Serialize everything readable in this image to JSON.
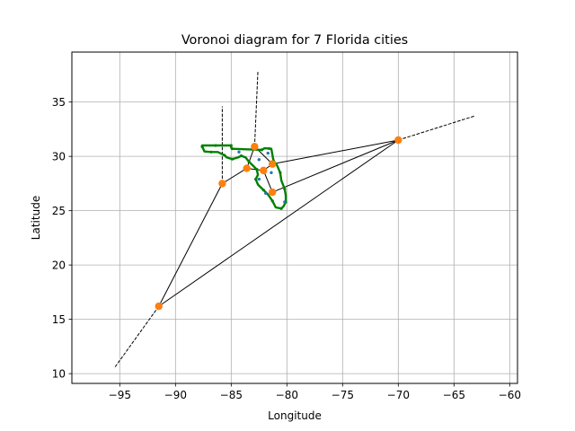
{
  "chart_data": {
    "type": "scatter",
    "title": "Voronoi diagram for 7 Florida cities",
    "xlabel": "Longitude",
    "ylabel": "Latitude",
    "xlim": [
      -99.3,
      -59.3
    ],
    "ylim": [
      9.1,
      39.6
    ],
    "xticks": [
      -95,
      -90,
      -85,
      -80,
      -75,
      -70,
      -65,
      -60
    ],
    "yticks": [
      10,
      15,
      20,
      25,
      30,
      35
    ],
    "xtick_labels": [
      "−95",
      "−90",
      "−85",
      "−80",
      "−75",
      "−70",
      "−65",
      "−60"
    ],
    "ytick_labels": [
      "10",
      "15",
      "20",
      "25",
      "30",
      "35"
    ],
    "grid": true,
    "colors": {
      "cities": "#1f77b4",
      "vertices": "#ff7f0e",
      "outline": "#008000",
      "edges": "#000000"
    },
    "cities": [
      {
        "x": -84.3,
        "y": 30.4
      },
      {
        "x": -82.5,
        "y": 29.7
      },
      {
        "x": -81.4,
        "y": 28.5
      },
      {
        "x": -82.5,
        "y": 27.9
      },
      {
        "x": -80.2,
        "y": 25.8
      },
      {
        "x": -81.7,
        "y": 30.3
      },
      {
        "x": -81.9,
        "y": 26.6
      }
    ],
    "vertices": [
      {
        "x": -82.9,
        "y": 30.9
      },
      {
        "x": -70.0,
        "y": 31.5
      },
      {
        "x": -85.8,
        "y": 27.5
      },
      {
        "x": -83.6,
        "y": 28.9
      },
      {
        "x": -82.1,
        "y": 28.7
      },
      {
        "x": -81.3,
        "y": 29.3
      },
      {
        "x": -81.3,
        "y": 26.7
      },
      {
        "x": -91.5,
        "y": 16.2
      }
    ],
    "ridges": [
      [
        [
          -82.9,
          30.9
        ],
        [
          -81.3,
          29.3
        ]
      ],
      [
        [
          -82.9,
          30.9
        ],
        [
          -83.6,
          28.9
        ]
      ],
      [
        [
          -83.6,
          28.9
        ],
        [
          -85.8,
          27.5
        ]
      ],
      [
        [
          -83.6,
          28.9
        ],
        [
          -82.1,
          28.7
        ]
      ],
      [
        [
          -82.1,
          28.7
        ],
        [
          -81.3,
          29.3
        ]
      ],
      [
        [
          -82.1,
          28.7
        ],
        [
          -81.3,
          26.7
        ]
      ],
      [
        [
          -81.3,
          29.3
        ],
        [
          -70.0,
          31.5
        ]
      ],
      [
        [
          -85.8,
          27.5
        ],
        [
          -91.5,
          16.2
        ]
      ],
      [
        [
          -91.5,
          16.2
        ],
        [
          -70.0,
          31.5
        ]
      ],
      [
        [
          -81.3,
          26.7
        ],
        [
          -70.0,
          31.5
        ]
      ]
    ],
    "open_ridges": [
      [
        [
          -85.8,
          27.5
        ],
        [
          -85.8,
          34.6
        ]
      ],
      [
        [
          -82.9,
          30.9
        ],
        [
          -82.6,
          37.9
        ]
      ],
      [
        [
          -70.0,
          31.5
        ],
        [
          -63.2,
          33.7
        ]
      ],
      [
        [
          -91.5,
          16.2
        ],
        [
          -95.5,
          10.5
        ]
      ]
    ],
    "outline": [
      [
        -87.6,
        30.9
      ],
      [
        -87.6,
        31.0
      ],
      [
        -86.4,
        31.0
      ],
      [
        -85.6,
        31.0
      ],
      [
        -85.0,
        31.0
      ],
      [
        -85.0,
        30.8
      ],
      [
        -84.9,
        30.7
      ],
      [
        -83.6,
        30.65
      ],
      [
        -82.25,
        30.6
      ],
      [
        -82.0,
        30.75
      ],
      [
        -81.6,
        30.72
      ],
      [
        -81.4,
        30.7
      ],
      [
        -81.2,
        29.6
      ],
      [
        -80.9,
        29.2
      ],
      [
        -80.6,
        28.5
      ],
      [
        -80.5,
        27.8
      ],
      [
        -80.2,
        27.0
      ],
      [
        -80.1,
        26.4
      ],
      [
        -80.1,
        25.8
      ],
      [
        -80.3,
        25.4
      ],
      [
        -80.5,
        25.2
      ],
      [
        -81.0,
        25.3
      ],
      [
        -81.3,
        25.9
      ],
      [
        -81.7,
        26.5
      ],
      [
        -82.1,
        26.9
      ],
      [
        -82.6,
        27.4
      ],
      [
        -82.8,
        27.9
      ],
      [
        -82.6,
        28.3
      ],
      [
        -82.7,
        28.8
      ],
      [
        -83.0,
        29.1
      ],
      [
        -83.4,
        29.5
      ],
      [
        -83.7,
        29.9
      ],
      [
        -84.1,
        30.05
      ],
      [
        -84.4,
        29.9
      ],
      [
        -84.9,
        29.75
      ],
      [
        -85.4,
        29.9
      ],
      [
        -85.6,
        30.1
      ],
      [
        -86.2,
        30.4
      ],
      [
        -86.8,
        30.4
      ],
      [
        -87.4,
        30.45
      ],
      [
        -87.6,
        30.9
      ]
    ]
  }
}
